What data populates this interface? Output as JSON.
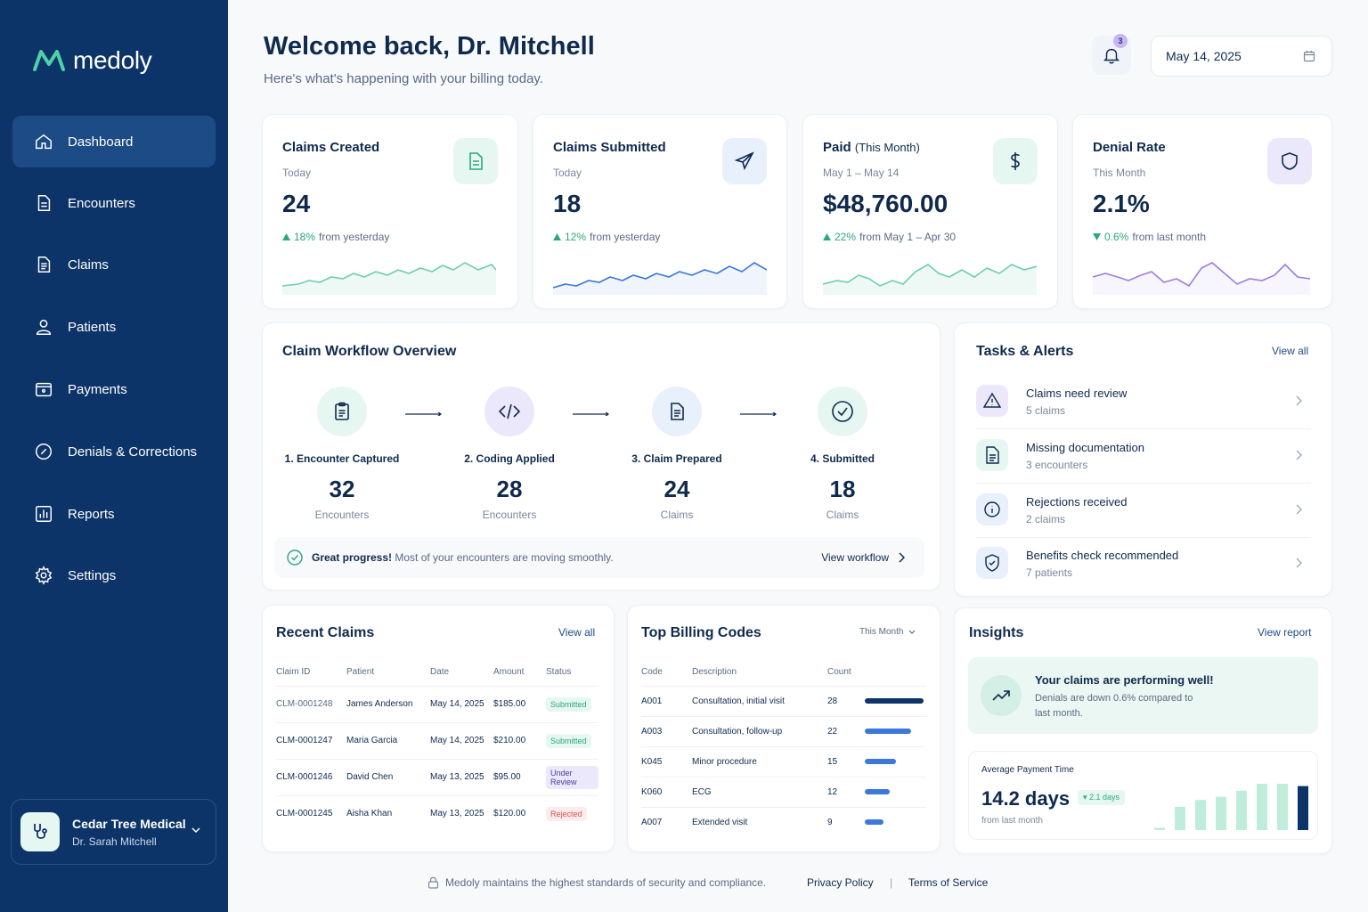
{
  "brand": {
    "name": "medoly"
  },
  "nav": [
    {
      "label": "Dashboard",
      "icon": "home-icon",
      "active": true
    },
    {
      "label": "Encounters",
      "icon": "document-icon"
    },
    {
      "label": "Claims",
      "icon": "claims-icon"
    },
    {
      "label": "Patients",
      "icon": "user-icon"
    },
    {
      "label": "Payments",
      "icon": "wallet-icon"
    },
    {
      "label": "Denials & Corrections",
      "icon": "tag-icon"
    },
    {
      "label": "Reports",
      "icon": "chart-icon"
    },
    {
      "label": "Settings",
      "icon": "gear-icon"
    }
  ],
  "org": {
    "name": "Cedar Tree Medical",
    "user": "Dr. Sarah Mitchell"
  },
  "header": {
    "welcome": "Welcome back, Dr. Mitchell",
    "subtitle": "Here's what's happening with your billing today.",
    "notifications": "3",
    "date": "May 14, 2025"
  },
  "kpis": [
    {
      "title": "Claims Created",
      "title_suffix": "",
      "sub": "Today",
      "value": "24",
      "change_pct": "18%",
      "change_text": "from yesterday",
      "direction": "up",
      "color": "#2aa87c"
    },
    {
      "title": "Claims Submitted",
      "title_suffix": "",
      "sub": "Today",
      "value": "18",
      "change_pct": "12%",
      "change_text": "from yesterday",
      "direction": "up",
      "color": "#3b78d8"
    },
    {
      "title": "Paid",
      "title_suffix": "(This Month)",
      "sub": "May 1 – May 14",
      "value": "$48,760.00",
      "change_pct": "22%",
      "change_text": "from May 1 – Apr 30",
      "direction": "up",
      "color": "#2aa87c"
    },
    {
      "title": "Denial Rate",
      "title_suffix": "",
      "sub": "This Month",
      "value": "2.1%",
      "change_pct": "0.6%",
      "change_text": "from last month",
      "direction": "down",
      "color": "#9a7ee0"
    }
  ],
  "workflow": {
    "title": "Claim Workflow Overview",
    "steps": [
      {
        "label": "1. Encounter Captured",
        "value": "32",
        "unit": "Encounters"
      },
      {
        "label": "2. Coding Applied",
        "value": "28",
        "unit": "Encounters"
      },
      {
        "label": "3. Claim Prepared",
        "value": "24",
        "unit": "Claims"
      },
      {
        "label": "4. Submitted",
        "value": "18",
        "unit": "Claims"
      }
    ],
    "progress_bold": "Great progress!",
    "progress_text": "Most of your encounters are moving smoothly.",
    "progress_link": "View workflow"
  },
  "tasks": {
    "title": "Tasks & Alerts",
    "view_all": "View all",
    "items": [
      {
        "title": "Claims need review",
        "sub": "5 claims"
      },
      {
        "title": "Missing documentation",
        "sub": "3 encounters"
      },
      {
        "title": "Rejections received",
        "sub": "2 claims"
      },
      {
        "title": "Benefits check recommended",
        "sub": "7 patients"
      }
    ]
  },
  "recent_claims": {
    "title": "Recent Claims",
    "view_all": "View all",
    "columns": [
      "Claim ID",
      "Patient",
      "Date",
      "Amount",
      "Status"
    ],
    "rows": [
      {
        "id": "CLM-0001248",
        "patient": "James Anderson",
        "date": "May 14, 2025",
        "amount": "$185.00",
        "status": "Submitted"
      },
      {
        "id": "CLM-0001247",
        "patient": "Maria Garcia",
        "date": "May 14, 2025",
        "amount": "$210.00",
        "status": "Submitted"
      },
      {
        "id": "CLM-0001246",
        "patient": "David Chen",
        "date": "May 13, 2025",
        "amount": "$95.00",
        "status": "Under Review"
      },
      {
        "id": "CLM-0001245",
        "patient": "Aisha Khan",
        "date": "May 13, 2025",
        "amount": "$120.00",
        "status": "Rejected"
      }
    ]
  },
  "billing_codes": {
    "title": "Top Billing Codes",
    "period": "This Month",
    "columns": [
      "Code",
      "Description",
      "Count"
    ],
    "max_count": 28,
    "rows": [
      {
        "code": "A001",
        "desc": "Consultation, initial visit",
        "count": "28"
      },
      {
        "code": "A003",
        "desc": "Consultation, follow-up",
        "count": "22"
      },
      {
        "code": "K045",
        "desc": "Minor procedure",
        "count": "15"
      },
      {
        "code": "K060",
        "desc": "ECG",
        "count": "12"
      },
      {
        "code": "A007",
        "desc": "Extended visit",
        "count": "9"
      }
    ]
  },
  "insights": {
    "title": "Insights",
    "view_report": "View report",
    "headline": "Your claims are performing well!",
    "text": "Denials are down 0.6% compared to last month.",
    "apt_label": "Average Payment Time",
    "apt_value": "14.2 days",
    "apt_badge": "2.1 days",
    "apt_sub": "from last month",
    "apt_bars": [
      0.05,
      0.5,
      0.65,
      0.72,
      0.85,
      1.0,
      1.0,
      0.95
    ]
  },
  "footer": {
    "security": "Medoly maintains the highest standards of security and compliance.",
    "privacy": "Privacy Policy",
    "separator": "|",
    "terms": "Terms of Service"
  }
}
